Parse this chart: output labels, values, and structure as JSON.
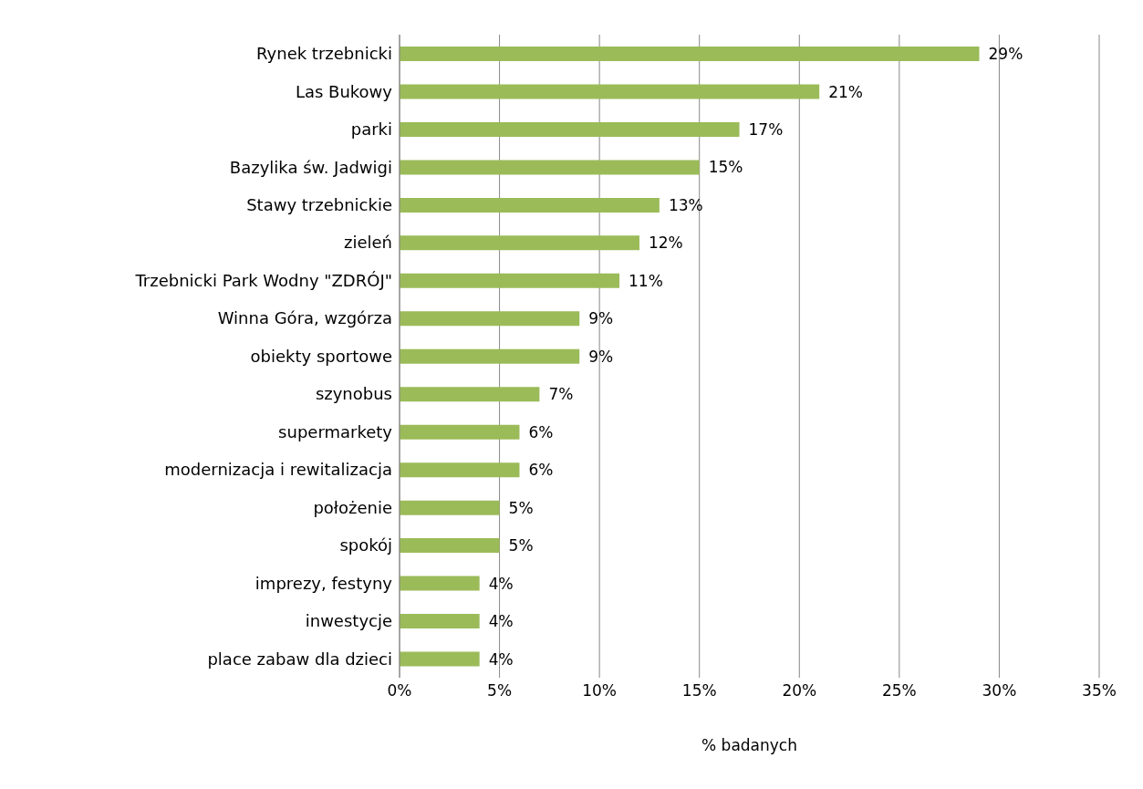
{
  "chart_data": {
    "type": "bar",
    "orientation": "horizontal",
    "xlabel": "% badanych",
    "categories": [
      "Rynek trzebnicki",
      "Las Bukowy",
      "parki",
      "Bazylika św. Jadwigi",
      "Stawy trzebnickie",
      "zieleń",
      "Trzebnicki Park Wodny \"ZDRÓJ\"",
      "Winna Góra, wzgórza",
      "obiekty sportowe",
      "szynobus",
      "supermarkety",
      "modernizacja i rewitalizacja",
      "położenie",
      "spokój",
      "imprezy, festyny",
      "inwestycje",
      "place zabaw dla dzieci"
    ],
    "values": [
      29,
      21,
      17,
      15,
      13,
      12,
      11,
      9,
      9,
      7,
      6,
      6,
      5,
      5,
      4,
      4,
      4
    ],
    "value_labels": [
      "29%",
      "21%",
      "17%",
      "15%",
      "13%",
      "12%",
      "11%",
      "9%",
      "9%",
      "7%",
      "6%",
      "6%",
      "5%",
      "5%",
      "4%",
      "4%",
      "4%"
    ],
    "color": "#9bbb59",
    "xlim": [
      0,
      35
    ],
    "xticks": [
      {
        "value": 0,
        "label": "0%"
      },
      {
        "value": 5,
        "label": "5%"
      },
      {
        "value": 10,
        "label": "10%"
      },
      {
        "value": 15,
        "label": "15%"
      },
      {
        "value": 20,
        "label": "20%"
      },
      {
        "value": 25,
        "label": "25%"
      },
      {
        "value": 30,
        "label": "30%"
      },
      {
        "value": 35,
        "label": "35%"
      }
    ],
    "grid": "x"
  }
}
